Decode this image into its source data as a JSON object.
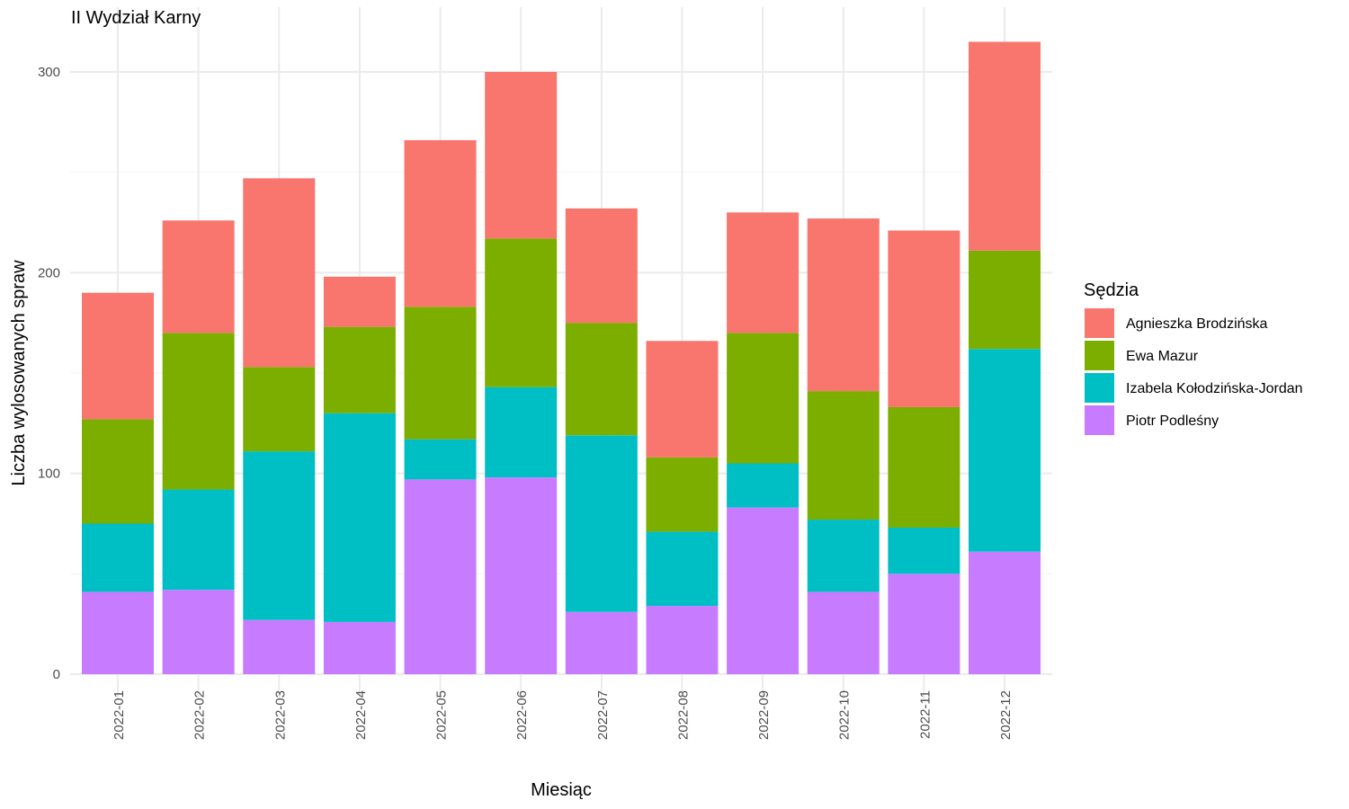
{
  "chart_data": {
    "type": "bar",
    "stacked": true,
    "title": "II Wydział Karny",
    "xlabel": "Miesiąc",
    "ylabel": "Liczba wylosowanych spraw",
    "ylim": [
      0,
      320
    ],
    "yticks": [
      0,
      100,
      200,
      300
    ],
    "grid": true,
    "legend_position": "right",
    "legend_title": "Sędzia",
    "categories": [
      "2022-01",
      "2022-02",
      "2022-03",
      "2022-04",
      "2022-05",
      "2022-06",
      "2022-07",
      "2022-08",
      "2022-09",
      "2022-10",
      "2022-11",
      "2022-12"
    ],
    "series": [
      {
        "name": "Piotr Podleśny",
        "color": "#C77CFF",
        "values": [
          41,
          42,
          27,
          26,
          97,
          98,
          31,
          34,
          83,
          41,
          50,
          61
        ]
      },
      {
        "name": "Izabela Kołodzińska-Jordan",
        "color": "#00BFC4",
        "values": [
          34,
          50,
          84,
          104,
          20,
          45,
          88,
          37,
          22,
          36,
          23,
          101
        ]
      },
      {
        "name": "Ewa Mazur",
        "color": "#7CAE00",
        "values": [
          52,
          78,
          42,
          43,
          66,
          74,
          56,
          37,
          65,
          64,
          60,
          49
        ]
      },
      {
        "name": "Agnieszka Brodzińska",
        "color": "#F8766D",
        "values": [
          63,
          56,
          94,
          25,
          83,
          83,
          57,
          58,
          60,
          86,
          88,
          104
        ]
      }
    ],
    "legend_order": [
      "Agnieszka Brodzińska",
      "Ewa Mazur",
      "Izabela Kołodzińska-Jordan",
      "Piotr Podleśny"
    ]
  }
}
